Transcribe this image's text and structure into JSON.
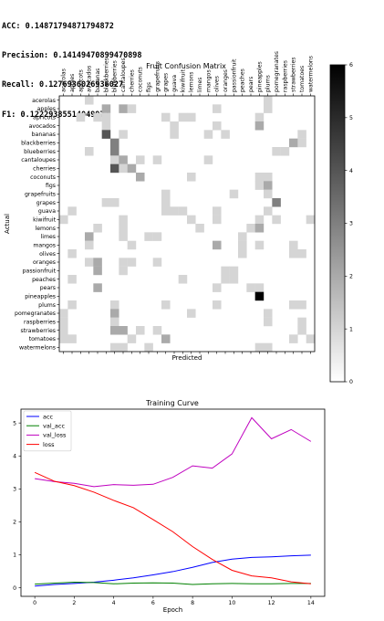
{
  "metrics": [
    {
      "label": "ACC:",
      "value": "0.14871794871794872"
    },
    {
      "label": "Precision:",
      "value": "0.14149470899470898"
    },
    {
      "label": "Recall:",
      "value": "0.1276936026936027"
    },
    {
      "label": "F1:",
      "value": "0.12229385514049977"
    }
  ],
  "chart_data": [
    {
      "type": "heatmap",
      "title": "Fruit Confusion Matrix",
      "xlabel": "Predicted",
      "ylabel": "Actual",
      "labels": [
        "acerolas",
        "apples",
        "apricots",
        "avocados",
        "bananas",
        "blackberries",
        "blueberries",
        "cantaloupes",
        "cherries",
        "coconuts",
        "figs",
        "grapefruits",
        "grapes",
        "guava",
        "kiwifruit",
        "lemons",
        "limes",
        "mangos",
        "olives",
        "oranges",
        "passionfruit",
        "peaches",
        "pears",
        "pineapples",
        "plums",
        "pomegranates",
        "raspberries",
        "strawberries",
        "tomatoes",
        "watermelons"
      ],
      "matrix": [
        [
          0,
          0,
          0,
          1,
          0,
          0,
          0,
          0,
          0,
          0,
          0,
          0,
          0,
          0,
          0,
          0,
          0,
          0,
          0,
          0,
          0,
          0,
          0,
          0,
          1,
          0,
          0,
          0,
          0,
          0
        ],
        [
          0,
          0,
          0,
          0,
          0,
          2,
          0,
          2,
          1,
          0,
          0,
          0,
          0,
          0,
          0,
          0,
          0,
          0,
          1,
          0,
          0,
          0,
          0,
          0,
          1,
          0,
          0,
          0,
          0,
          0
        ],
        [
          0,
          0,
          1,
          0,
          1,
          1,
          0,
          0,
          0,
          0,
          0,
          0,
          1,
          0,
          1,
          1,
          0,
          0,
          0,
          0,
          0,
          0,
          0,
          1,
          0,
          0,
          0,
          0,
          0,
          0
        ],
        [
          0,
          0,
          0,
          0,
          0,
          1,
          0,
          0,
          0,
          0,
          0,
          0,
          0,
          1,
          0,
          0,
          0,
          0,
          1,
          0,
          0,
          0,
          0,
          2,
          0,
          0,
          0,
          0,
          0,
          0
        ],
        [
          0,
          0,
          0,
          0,
          0,
          4,
          0,
          1,
          0,
          0,
          0,
          0,
          0,
          1,
          0,
          0,
          0,
          1,
          0,
          1,
          0,
          0,
          0,
          0,
          0,
          0,
          0,
          0,
          1,
          0
        ],
        [
          0,
          0,
          0,
          0,
          0,
          0,
          3,
          0,
          0,
          0,
          0,
          0,
          0,
          0,
          0,
          0,
          0,
          0,
          0,
          0,
          0,
          0,
          0,
          0,
          0,
          0,
          0,
          2,
          1,
          0
        ],
        [
          0,
          0,
          0,
          1,
          0,
          0,
          3,
          0,
          0,
          0,
          0,
          0,
          0,
          0,
          0,
          0,
          0,
          0,
          0,
          0,
          0,
          0,
          0,
          0,
          0,
          1,
          1,
          0,
          0,
          0
        ],
        [
          0,
          0,
          0,
          0,
          0,
          0,
          1,
          2,
          0,
          1,
          0,
          1,
          0,
          0,
          0,
          0,
          0,
          1,
          0,
          0,
          0,
          0,
          0,
          0,
          0,
          0,
          0,
          0,
          0,
          0
        ],
        [
          0,
          0,
          0,
          0,
          0,
          0,
          4,
          1,
          2,
          0,
          0,
          0,
          0,
          0,
          0,
          0,
          0,
          0,
          0,
          0,
          0,
          0,
          0,
          0,
          0,
          0,
          0,
          0,
          0,
          0
        ],
        [
          0,
          0,
          0,
          0,
          0,
          0,
          0,
          0,
          0,
          2,
          0,
          0,
          0,
          0,
          0,
          1,
          0,
          0,
          0,
          0,
          0,
          0,
          0,
          1,
          1,
          0,
          0,
          0,
          0,
          0
        ],
        [
          0,
          0,
          0,
          0,
          0,
          0,
          0,
          0,
          0,
          0,
          0,
          0,
          0,
          0,
          0,
          0,
          0,
          0,
          0,
          0,
          0,
          0,
          0,
          1,
          2,
          0,
          0,
          0,
          0,
          0
        ],
        [
          0,
          0,
          0,
          0,
          0,
          0,
          0,
          0,
          0,
          0,
          0,
          0,
          1,
          0,
          0,
          0,
          0,
          0,
          0,
          0,
          1,
          0,
          0,
          0,
          1,
          0,
          0,
          0,
          0,
          0
        ],
        [
          0,
          0,
          0,
          0,
          0,
          1,
          1,
          0,
          0,
          0,
          0,
          0,
          1,
          0,
          0,
          0,
          0,
          0,
          0,
          0,
          0,
          0,
          0,
          0,
          0,
          3,
          0,
          0,
          0,
          0
        ],
        [
          0,
          1,
          0,
          0,
          0,
          0,
          0,
          0,
          0,
          0,
          0,
          0,
          1,
          1,
          1,
          0,
          0,
          0,
          1,
          0,
          0,
          0,
          0,
          0,
          1,
          0,
          0,
          0,
          0,
          0
        ],
        [
          1,
          0,
          0,
          0,
          0,
          0,
          0,
          1,
          0,
          0,
          0,
          0,
          0,
          0,
          0,
          1,
          0,
          0,
          1,
          0,
          0,
          0,
          0,
          1,
          0,
          1,
          0,
          0,
          0,
          1
        ],
        [
          0,
          0,
          0,
          0,
          1,
          0,
          0,
          1,
          0,
          0,
          0,
          0,
          0,
          0,
          0,
          0,
          1,
          0,
          0,
          0,
          0,
          0,
          1,
          2,
          0,
          0,
          0,
          0,
          0,
          0
        ],
        [
          0,
          0,
          0,
          2,
          0,
          0,
          0,
          1,
          0,
          0,
          1,
          1,
          0,
          0,
          0,
          0,
          0,
          0,
          0,
          0,
          0,
          1,
          0,
          0,
          0,
          0,
          0,
          0,
          0,
          0
        ],
        [
          0,
          0,
          0,
          1,
          0,
          0,
          0,
          0,
          1,
          0,
          0,
          0,
          0,
          0,
          0,
          0,
          0,
          0,
          2,
          0,
          0,
          1,
          0,
          1,
          0,
          0,
          0,
          1,
          0,
          0
        ],
        [
          0,
          1,
          0,
          0,
          0,
          0,
          0,
          0,
          0,
          0,
          0,
          0,
          0,
          0,
          0,
          0,
          0,
          0,
          0,
          0,
          0,
          1,
          0,
          0,
          0,
          0,
          0,
          1,
          1,
          0
        ],
        [
          0,
          0,
          0,
          1,
          2,
          0,
          0,
          1,
          1,
          0,
          0,
          1,
          0,
          0,
          0,
          0,
          0,
          0,
          0,
          0,
          0,
          0,
          0,
          0,
          0,
          0,
          0,
          0,
          0,
          0
        ],
        [
          0,
          0,
          0,
          0,
          2,
          0,
          0,
          1,
          0,
          0,
          0,
          0,
          0,
          0,
          0,
          0,
          0,
          0,
          0,
          1,
          1,
          0,
          0,
          0,
          0,
          0,
          0,
          0,
          0,
          0
        ],
        [
          0,
          1,
          0,
          0,
          0,
          0,
          0,
          0,
          0,
          0,
          0,
          0,
          0,
          0,
          1,
          0,
          0,
          0,
          0,
          1,
          1,
          0,
          0,
          0,
          0,
          0,
          0,
          0,
          0,
          0
        ],
        [
          0,
          0,
          0,
          0,
          2,
          0,
          0,
          0,
          0,
          0,
          0,
          0,
          0,
          0,
          0,
          0,
          0,
          0,
          1,
          0,
          0,
          0,
          1,
          1,
          0,
          0,
          0,
          0,
          0,
          0
        ],
        [
          0,
          0,
          0,
          0,
          0,
          0,
          0,
          0,
          0,
          0,
          0,
          0,
          0,
          0,
          0,
          0,
          0,
          0,
          0,
          0,
          0,
          0,
          0,
          6,
          0,
          0,
          0,
          0,
          0,
          0
        ],
        [
          0,
          1,
          0,
          0,
          0,
          0,
          1,
          0,
          0,
          0,
          0,
          0,
          1,
          0,
          0,
          0,
          0,
          0,
          1,
          0,
          0,
          0,
          0,
          0,
          0,
          0,
          0,
          1,
          1,
          0
        ],
        [
          1,
          0,
          0,
          0,
          0,
          0,
          2,
          0,
          0,
          0,
          0,
          0,
          0,
          0,
          0,
          1,
          0,
          0,
          0,
          0,
          0,
          0,
          0,
          0,
          1,
          0,
          0,
          0,
          0,
          0
        ],
        [
          1,
          0,
          0,
          0,
          0,
          0,
          1,
          0,
          0,
          0,
          0,
          0,
          0,
          0,
          0,
          0,
          0,
          0,
          0,
          0,
          0,
          0,
          0,
          0,
          1,
          0,
          0,
          0,
          1,
          0
        ],
        [
          1,
          0,
          0,
          0,
          0,
          0,
          2,
          2,
          0,
          1,
          0,
          1,
          0,
          0,
          0,
          0,
          0,
          0,
          0,
          0,
          0,
          0,
          0,
          0,
          0,
          0,
          0,
          0,
          1,
          0
        ],
        [
          1,
          1,
          0,
          0,
          0,
          0,
          0,
          0,
          1,
          0,
          0,
          0,
          2,
          0,
          0,
          0,
          0,
          0,
          0,
          0,
          0,
          0,
          0,
          0,
          0,
          0,
          0,
          1,
          0,
          1
        ],
        [
          0,
          0,
          0,
          0,
          0,
          0,
          1,
          1,
          0,
          0,
          1,
          0,
          0,
          0,
          0,
          0,
          0,
          0,
          0,
          0,
          0,
          0,
          0,
          1,
          1,
          0,
          0,
          0,
          0,
          0
        ]
      ],
      "vmin": 0,
      "vmax": 6,
      "colorbar_ticks": [
        0,
        1,
        2,
        3,
        4,
        5,
        6
      ],
      "colormap": [
        "#ffffff",
        "#000000"
      ]
    },
    {
      "type": "line",
      "title": "Training Curve",
      "xlabel": "Epoch",
      "ylabel": "",
      "x": [
        0,
        1,
        2,
        3,
        4,
        5,
        6,
        7,
        8,
        9,
        10,
        11,
        12,
        13,
        14
      ],
      "xticks": [
        0,
        2,
        4,
        6,
        8,
        10,
        12,
        14
      ],
      "yticks": [
        0,
        1,
        2,
        3,
        4,
        5
      ],
      "xlim": [
        -0.7,
        14.7
      ],
      "ylim": [
        -0.26,
        5.42
      ],
      "legend": "top-left",
      "series": [
        {
          "name": "acc",
          "color": "#0000ff",
          "values": [
            0.05,
            0.1,
            0.13,
            0.17,
            0.23,
            0.3,
            0.39,
            0.49,
            0.62,
            0.77,
            0.87,
            0.92,
            0.94,
            0.97,
            0.99
          ]
        },
        {
          "name": "val_acc",
          "color": "#008000",
          "values": [
            0.11,
            0.14,
            0.17,
            0.16,
            0.12,
            0.14,
            0.15,
            0.14,
            0.1,
            0.12,
            0.13,
            0.12,
            0.12,
            0.13,
            0.13
          ]
        },
        {
          "name": "val_loss",
          "color": "#bf00bf",
          "values": [
            3.31,
            3.22,
            3.17,
            3.07,
            3.13,
            3.11,
            3.14,
            3.35,
            3.7,
            3.63,
            4.06,
            5.16,
            4.52,
            4.8,
            4.44
          ]
        },
        {
          "name": "loss",
          "color": "#ff0000",
          "values": [
            3.5,
            3.23,
            3.1,
            2.9,
            2.65,
            2.43,
            2.07,
            1.7,
            1.25,
            0.86,
            0.53,
            0.36,
            0.3,
            0.18,
            0.12
          ]
        }
      ]
    }
  ]
}
